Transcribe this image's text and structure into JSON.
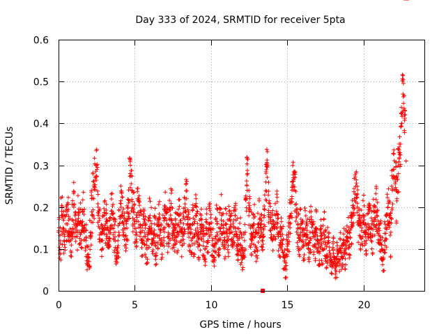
{
  "chart_data": {
    "type": "scatter",
    "title": "Day 333 of 2024, SRMTID for receiver 5pta",
    "xlabel": "GPS time / hours",
    "ylabel": "SRMTID / TECUs",
    "xlim": [
      0,
      24
    ],
    "ylim": [
      0,
      0.6
    ],
    "x_ticks": [
      0,
      5,
      10,
      15,
      20
    ],
    "x_tick_labels": [
      "0",
      "5",
      "10",
      "15",
      "20"
    ],
    "y_ticks": [
      0,
      0.1,
      0.2,
      0.3,
      0.4,
      0.5,
      0.6
    ],
    "y_tick_labels": [
      "0",
      "0.1",
      "0.2",
      "0.3",
      "0.4",
      "0.5",
      "0.6"
    ],
    "grid": true,
    "marker": "plus",
    "color": "#ff0000",
    "series": [
      {
        "name": "SRMTID",
        "x": [
          0.0,
          0.1,
          0.2,
          0.3,
          0.4,
          0.5,
          0.6,
          0.7,
          0.8,
          0.9,
          1.0,
          1.1,
          1.2,
          1.3,
          1.4,
          1.5,
          1.6,
          1.7,
          1.8,
          1.9,
          2.0,
          2.1,
          2.2,
          2.3,
          2.4,
          2.5,
          2.6,
          2.7,
          2.8,
          2.9,
          3.0,
          3.1,
          3.2,
          3.3,
          3.4,
          3.5,
          3.6,
          3.7,
          3.8,
          3.9,
          4.0,
          4.1,
          4.2,
          4.3,
          4.4,
          4.5,
          4.6,
          4.7,
          4.8,
          4.9,
          5.0,
          5.1,
          5.2,
          5.3,
          5.4,
          5.5,
          5.6,
          5.7,
          5.8,
          5.9,
          6.0,
          6.1,
          6.2,
          6.3,
          6.4,
          6.5,
          6.6,
          6.7,
          6.8,
          6.9,
          7.0,
          7.1,
          7.2,
          7.3,
          7.4,
          7.5,
          7.6,
          7.7,
          7.8,
          7.9,
          8.0,
          8.1,
          8.2,
          8.3,
          8.4,
          8.5,
          8.6,
          8.7,
          8.8,
          8.9,
          9.0,
          9.1,
          9.2,
          9.3,
          9.4,
          9.5,
          9.6,
          9.7,
          9.8,
          9.9,
          10.0,
          10.1,
          10.2,
          10.3,
          10.4,
          10.5,
          10.6,
          10.7,
          10.8,
          10.9,
          11.0,
          11.1,
          11.2,
          11.3,
          11.4,
          11.5,
          11.6,
          11.7,
          11.8,
          11.9,
          12.0,
          12.1,
          12.2,
          12.3,
          12.4,
          12.5,
          12.6,
          12.7,
          12.8,
          12.9,
          13.0,
          13.1,
          13.2,
          13.3,
          13.4,
          13.5,
          13.6,
          13.7,
          13.8,
          13.9,
          14.0,
          14.1,
          14.2,
          14.3,
          14.4,
          14.5,
          14.6,
          14.7,
          14.8,
          14.9,
          15.0,
          15.1,
          15.2,
          15.3,
          15.4,
          15.5,
          15.6,
          15.7,
          15.8,
          15.9,
          16.0,
          16.1,
          16.2,
          16.3,
          16.4,
          16.5,
          16.6,
          16.7,
          16.8,
          16.9,
          17.0,
          17.1,
          17.2,
          17.3,
          17.4,
          17.5,
          17.6,
          17.7,
          17.8,
          17.9,
          18.0,
          18.1,
          18.2,
          18.3,
          18.4,
          18.5,
          18.6,
          18.7,
          18.8,
          18.9,
          19.0,
          19.1,
          19.2,
          19.3,
          19.4,
          19.5,
          19.6,
          19.7,
          19.8,
          19.9,
          20.0,
          20.1,
          20.2,
          20.3,
          20.4,
          20.5,
          20.6,
          20.7,
          20.8,
          20.9,
          21.0,
          21.1,
          21.2,
          21.3,
          21.4,
          21.5,
          21.6,
          21.7,
          21.8,
          21.9,
          22.0,
          22.1,
          22.2,
          22.3,
          22.4,
          22.5,
          22.6,
          22.7,
          22.8
        ],
        "values": [
          0.14,
          0.12,
          0.18,
          0.15,
          0.13,
          0.16,
          0.19,
          0.14,
          0.12,
          0.17,
          0.2,
          0.15,
          0.13,
          0.18,
          0.16,
          0.14,
          0.19,
          0.15,
          0.12,
          0.08,
          0.07,
          0.14,
          0.18,
          0.22,
          0.27,
          0.3,
          0.2,
          0.15,
          0.12,
          0.14,
          0.18,
          0.16,
          0.13,
          0.11,
          0.15,
          0.19,
          0.17,
          0.14,
          0.08,
          0.12,
          0.16,
          0.2,
          0.18,
          0.15,
          0.13,
          0.17,
          0.21,
          0.28,
          0.24,
          0.19,
          0.16,
          0.14,
          0.22,
          0.18,
          0.15,
          0.12,
          0.16,
          0.13,
          0.1,
          0.14,
          0.18,
          0.15,
          0.12,
          0.16,
          0.09,
          0.13,
          0.17,
          0.14,
          0.11,
          0.15,
          0.19,
          0.16,
          0.13,
          0.17,
          0.2,
          0.15,
          0.12,
          0.16,
          0.14,
          0.18,
          0.15,
          0.12,
          0.16,
          0.19,
          0.22,
          0.17,
          0.14,
          0.12,
          0.16,
          0.13,
          0.18,
          0.15,
          0.11,
          0.14,
          0.17,
          0.13,
          0.1,
          0.15,
          0.12,
          0.16,
          0.14,
          0.11,
          0.08,
          0.13,
          0.16,
          0.12,
          0.15,
          0.18,
          0.14,
          0.11,
          0.16,
          0.13,
          0.17,
          0.14,
          0.12,
          0.15,
          0.18,
          0.13,
          0.11,
          0.14,
          0.1,
          0.08,
          0.12,
          0.22,
          0.28,
          0.19,
          0.15,
          0.12,
          0.16,
          0.13,
          0.1,
          0.14,
          0.17,
          0.15,
          0.12,
          0.18,
          0.26,
          0.3,
          0.21,
          0.17,
          0.15,
          0.13,
          0.16,
          0.19,
          0.14,
          0.11,
          0.15,
          0.12,
          0.08,
          0.06,
          0.1,
          0.14,
          0.18,
          0.22,
          0.27,
          0.24,
          0.19,
          0.15,
          0.12,
          0.16,
          0.14,
          0.11,
          0.15,
          0.13,
          0.1,
          0.14,
          0.17,
          0.13,
          0.11,
          0.15,
          0.12,
          0.09,
          0.13,
          0.1,
          0.14,
          0.11,
          0.08,
          0.12,
          0.09,
          0.07,
          0.1,
          0.08,
          0.06,
          0.09,
          0.07,
          0.1,
          0.08,
          0.11,
          0.09,
          0.12,
          0.14,
          0.11,
          0.15,
          0.18,
          0.22,
          0.25,
          0.2,
          0.16,
          0.13,
          0.15,
          0.18,
          0.14,
          0.12,
          0.16,
          0.19,
          0.15,
          0.13,
          0.17,
          0.2,
          0.18,
          0.15,
          0.13,
          0.1,
          0.08,
          0.12,
          0.15,
          0.2,
          0.18,
          0.14,
          0.24,
          0.29,
          0.26,
          0.22,
          0.28,
          0.33,
          0.4,
          0.47,
          0.42,
          0.31
        ],
        "spread": [
          0.04,
          0.05,
          0.05,
          0.04,
          0.05,
          0.05,
          0.06,
          0.05,
          0.04,
          0.05,
          0.06,
          0.05,
          0.04,
          0.05,
          0.05,
          0.04,
          0.05,
          0.05,
          0.04,
          0.03,
          0.03,
          0.05,
          0.06,
          0.07,
          0.05,
          0.04,
          0.06,
          0.05,
          0.04,
          0.05,
          0.05,
          0.05,
          0.04,
          0.04,
          0.05,
          0.05,
          0.05,
          0.05,
          0.03,
          0.04,
          0.05,
          0.06,
          0.05,
          0.05,
          0.04,
          0.05,
          0.05,
          0.04,
          0.05,
          0.05,
          0.05,
          0.05,
          0.06,
          0.05,
          0.05,
          0.04,
          0.05,
          0.05,
          0.04,
          0.05,
          0.05,
          0.05,
          0.04,
          0.05,
          0.04,
          0.05,
          0.05,
          0.05,
          0.04,
          0.05,
          0.05,
          0.05,
          0.04,
          0.05,
          0.05,
          0.05,
          0.04,
          0.05,
          0.05,
          0.05,
          0.05,
          0.04,
          0.05,
          0.05,
          0.05,
          0.05,
          0.05,
          0.04,
          0.05,
          0.05,
          0.05,
          0.05,
          0.04,
          0.05,
          0.05,
          0.05,
          0.04,
          0.05,
          0.04,
          0.05,
          0.05,
          0.04,
          0.03,
          0.05,
          0.05,
          0.04,
          0.05,
          0.05,
          0.05,
          0.04,
          0.05,
          0.05,
          0.05,
          0.05,
          0.04,
          0.05,
          0.05,
          0.05,
          0.04,
          0.05,
          0.04,
          0.03,
          0.04,
          0.05,
          0.04,
          0.05,
          0.05,
          0.04,
          0.05,
          0.05,
          0.04,
          0.05,
          0.05,
          0.05,
          0.04,
          0.05,
          0.05,
          0.04,
          0.05,
          0.05,
          0.05,
          0.04,
          0.05,
          0.05,
          0.05,
          0.04,
          0.05,
          0.04,
          0.03,
          0.03,
          0.04,
          0.05,
          0.05,
          0.05,
          0.04,
          0.05,
          0.05,
          0.05,
          0.04,
          0.05,
          0.05,
          0.04,
          0.05,
          0.05,
          0.04,
          0.05,
          0.05,
          0.05,
          0.04,
          0.05,
          0.04,
          0.03,
          0.04,
          0.04,
          0.05,
          0.04,
          0.03,
          0.04,
          0.03,
          0.03,
          0.04,
          0.03,
          0.03,
          0.03,
          0.03,
          0.04,
          0.03,
          0.04,
          0.04,
          0.04,
          0.04,
          0.04,
          0.05,
          0.05,
          0.05,
          0.04,
          0.05,
          0.05,
          0.04,
          0.05,
          0.05,
          0.05,
          0.04,
          0.05,
          0.05,
          0.05,
          0.05,
          0.05,
          0.05,
          0.04,
          0.04,
          0.04,
          0.03,
          0.04,
          0.05,
          0.05,
          0.05,
          0.04,
          0.06,
          0.05,
          0.05,
          0.05,
          0.06,
          0.06,
          0.05,
          0.04,
          0.05,
          0.06
        ],
        "outlier": {
          "x": 13.4,
          "value": 0.0
        }
      }
    ]
  }
}
